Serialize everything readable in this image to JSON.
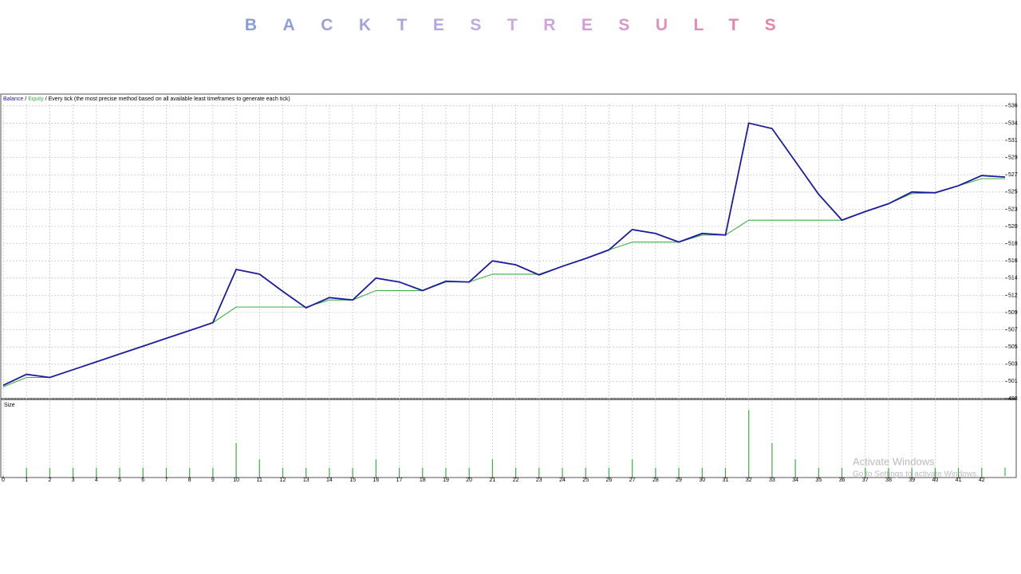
{
  "header": {
    "title": "BACKTESTRESULTS"
  },
  "chart_data": [
    {
      "type": "line",
      "legend_separator": "/",
      "subtitle": "/ Every tick (the most precise method based on all available least timeframes to generate each tick)",
      "xlim": [
        0,
        43
      ],
      "ylim": [
        498.9,
        537.3
      ],
      "yticks": [
        {
          "value": 498.9,
          "label": "498"
        },
        {
          "value": 501.1,
          "label": "501"
        },
        {
          "value": 503.3,
          "label": "503"
        },
        {
          "value": 505.5,
          "label": "505"
        },
        {
          "value": 507.7,
          "label": "507"
        },
        {
          "value": 509.9,
          "label": "509"
        },
        {
          "value": 512.1,
          "label": "512"
        },
        {
          "value": 514.3,
          "label": "514"
        },
        {
          "value": 516.5,
          "label": "516"
        },
        {
          "value": 518.7,
          "label": "518"
        },
        {
          "value": 520.9,
          "label": "520"
        },
        {
          "value": 523.1,
          "label": "523"
        },
        {
          "value": 525.3,
          "label": "525"
        },
        {
          "value": 527.5,
          "label": "527"
        },
        {
          "value": 529.7,
          "label": "529"
        },
        {
          "value": 531.9,
          "label": "531"
        },
        {
          "value": 534.1,
          "label": "534"
        },
        {
          "value": 536.3,
          "label": "536"
        }
      ],
      "grid": true,
      "x": [
        0,
        1,
        2,
        3,
        4,
        5,
        6,
        7,
        8,
        9,
        10,
        11,
        12,
        13,
        14,
        15,
        16,
        17,
        18,
        19,
        20,
        21,
        22,
        23,
        24,
        25,
        26,
        27,
        28,
        29,
        30,
        31,
        32,
        33,
        34,
        35,
        36,
        37,
        38,
        39,
        40,
        41,
        42,
        43
      ],
      "series": [
        {
          "name": "Equity",
          "color": "#3cb043",
          "values": [
            500.4,
            501.6,
            501.6,
            502.6,
            503.6,
            504.6,
            505.6,
            506.6,
            507.6,
            508.6,
            510.6,
            510.6,
            510.6,
            510.6,
            511.5,
            511.5,
            512.7,
            512.7,
            512.7,
            513.8,
            513.8,
            514.8,
            514.8,
            514.8,
            515.8,
            516.8,
            517.9,
            518.9,
            518.9,
            518.9,
            519.8,
            519.8,
            521.7,
            521.7,
            521.7,
            521.7,
            521.7,
            522.8,
            523.8,
            525.1,
            525.2,
            526.1,
            527.0,
            527.0
          ]
        },
        {
          "name": "Balance",
          "color": "#1c1ca0",
          "values": [
            500.6,
            502.0,
            501.6,
            502.6,
            503.6,
            504.6,
            505.6,
            506.6,
            507.6,
            508.6,
            515.4,
            514.8,
            512.6,
            510.5,
            511.8,
            511.5,
            514.3,
            513.8,
            512.7,
            513.9,
            513.8,
            516.5,
            516.0,
            514.7,
            515.8,
            516.8,
            517.9,
            520.5,
            520.0,
            518.9,
            520.0,
            519.8,
            534.1,
            533.4,
            529.2,
            525.0,
            521.7,
            522.8,
            523.8,
            525.3,
            525.2,
            526.1,
            527.4,
            527.2
          ]
        }
      ]
    },
    {
      "type": "bar",
      "title": "Size",
      "color": "#3cb043",
      "xlim": [
        0,
        43
      ],
      "ylim": [
        0,
        0.09
      ],
      "xticks": [
        0,
        1,
        2,
        3,
        4,
        5,
        6,
        7,
        8,
        9,
        10,
        11,
        12,
        13,
        14,
        15,
        16,
        17,
        18,
        19,
        20,
        21,
        22,
        23,
        24,
        25,
        26,
        27,
        28,
        29,
        30,
        31,
        32,
        33,
        34,
        35,
        36,
        37,
        38,
        39,
        40,
        41,
        42
      ],
      "x": [
        1,
        2,
        3,
        4,
        5,
        6,
        7,
        8,
        9,
        10,
        11,
        12,
        13,
        14,
        15,
        16,
        17,
        18,
        19,
        20,
        21,
        22,
        23,
        24,
        25,
        26,
        27,
        28,
        29,
        30,
        31,
        32,
        33,
        34,
        35,
        36,
        37,
        38,
        39,
        40,
        41,
        42,
        43
      ],
      "values": [
        0.01,
        0.01,
        0.01,
        0.01,
        0.01,
        0.01,
        0.01,
        0.01,
        0.01,
        0.04,
        0.02,
        0.01,
        0.01,
        0.01,
        0.01,
        0.02,
        0.01,
        0.01,
        0.01,
        0.01,
        0.02,
        0.01,
        0.01,
        0.01,
        0.01,
        0.01,
        0.02,
        0.01,
        0.01,
        0.01,
        0.01,
        0.08,
        0.04,
        0.02,
        0.01,
        0.01,
        0.01,
        0.01,
        0.01,
        0.01,
        0.01,
        0.01,
        0.01
      ]
    }
  ],
  "watermark": {
    "line1": "Activate Windows",
    "line2": "Go to Settings to activate Windows."
  }
}
